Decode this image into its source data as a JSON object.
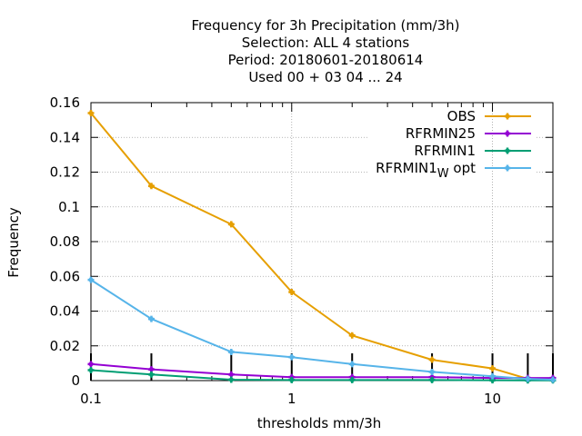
{
  "chart_data": {
    "type": "line",
    "title_lines": [
      "Frequency  for 3h Precipitation (mm/3h)",
      "Selection: ALL      4 stations",
      "Period: 20180601-20180614",
      "Used  00 + 03 04 ... 24"
    ],
    "xlabel": "thresholds mm/3h",
    "ylabel": "Frequency",
    "x_scale": "log",
    "xlim": [
      0.1,
      20
    ],
    "ylim": [
      0,
      0.16
    ],
    "xticks": [
      0.1,
      1,
      10
    ],
    "xtick_labels": [
      "0.1",
      "1",
      "10"
    ],
    "yticks": [
      0,
      0.02,
      0.04,
      0.06,
      0.08,
      0.1,
      0.12,
      0.14,
      0.16
    ],
    "ytick_labels": [
      "0",
      "0.02",
      "0.04",
      "0.06",
      "0.08",
      "0.1",
      "0.12",
      "0.14",
      "0.16"
    ],
    "grid": true,
    "legend_position": "top-right",
    "x": [
      0.1,
      0.2,
      0.5,
      1,
      2,
      5,
      10,
      15,
      20
    ],
    "series": [
      {
        "name": "OBS",
        "label_main": "OBS",
        "label_sub": "",
        "label_tail": "",
        "color": "#e69f00",
        "values": [
          0.154,
          0.112,
          0.09,
          0.051,
          0.026,
          0.012,
          0.007,
          0.001,
          0.001
        ]
      },
      {
        "name": "RFRMIN25",
        "label_main": "RFRMIN25",
        "label_sub": "",
        "label_tail": "",
        "color": "#9400d3",
        "values": [
          0.0095,
          0.0065,
          0.0035,
          0.002,
          0.002,
          0.002,
          0.0015,
          0.0015,
          0.0015
        ]
      },
      {
        "name": "RFRMIN1",
        "label_main": "RFRMIN1",
        "label_sub": "",
        "label_tail": "",
        "color": "#009e73",
        "values": [
          0.006,
          0.0035,
          0.0005,
          0.0003,
          0.0003,
          0.0003,
          0.0002,
          0.0001,
          0.0001
        ]
      },
      {
        "name": "RFRMIN1_W opt",
        "label_main": "RFRMIN1",
        "label_sub": "W",
        "label_tail": " opt",
        "color": "#56b4e9",
        "values": [
          0.058,
          0.0355,
          0.0165,
          0.0135,
          0.0095,
          0.005,
          0.0025,
          0.001,
          0.0005
        ]
      }
    ]
  }
}
